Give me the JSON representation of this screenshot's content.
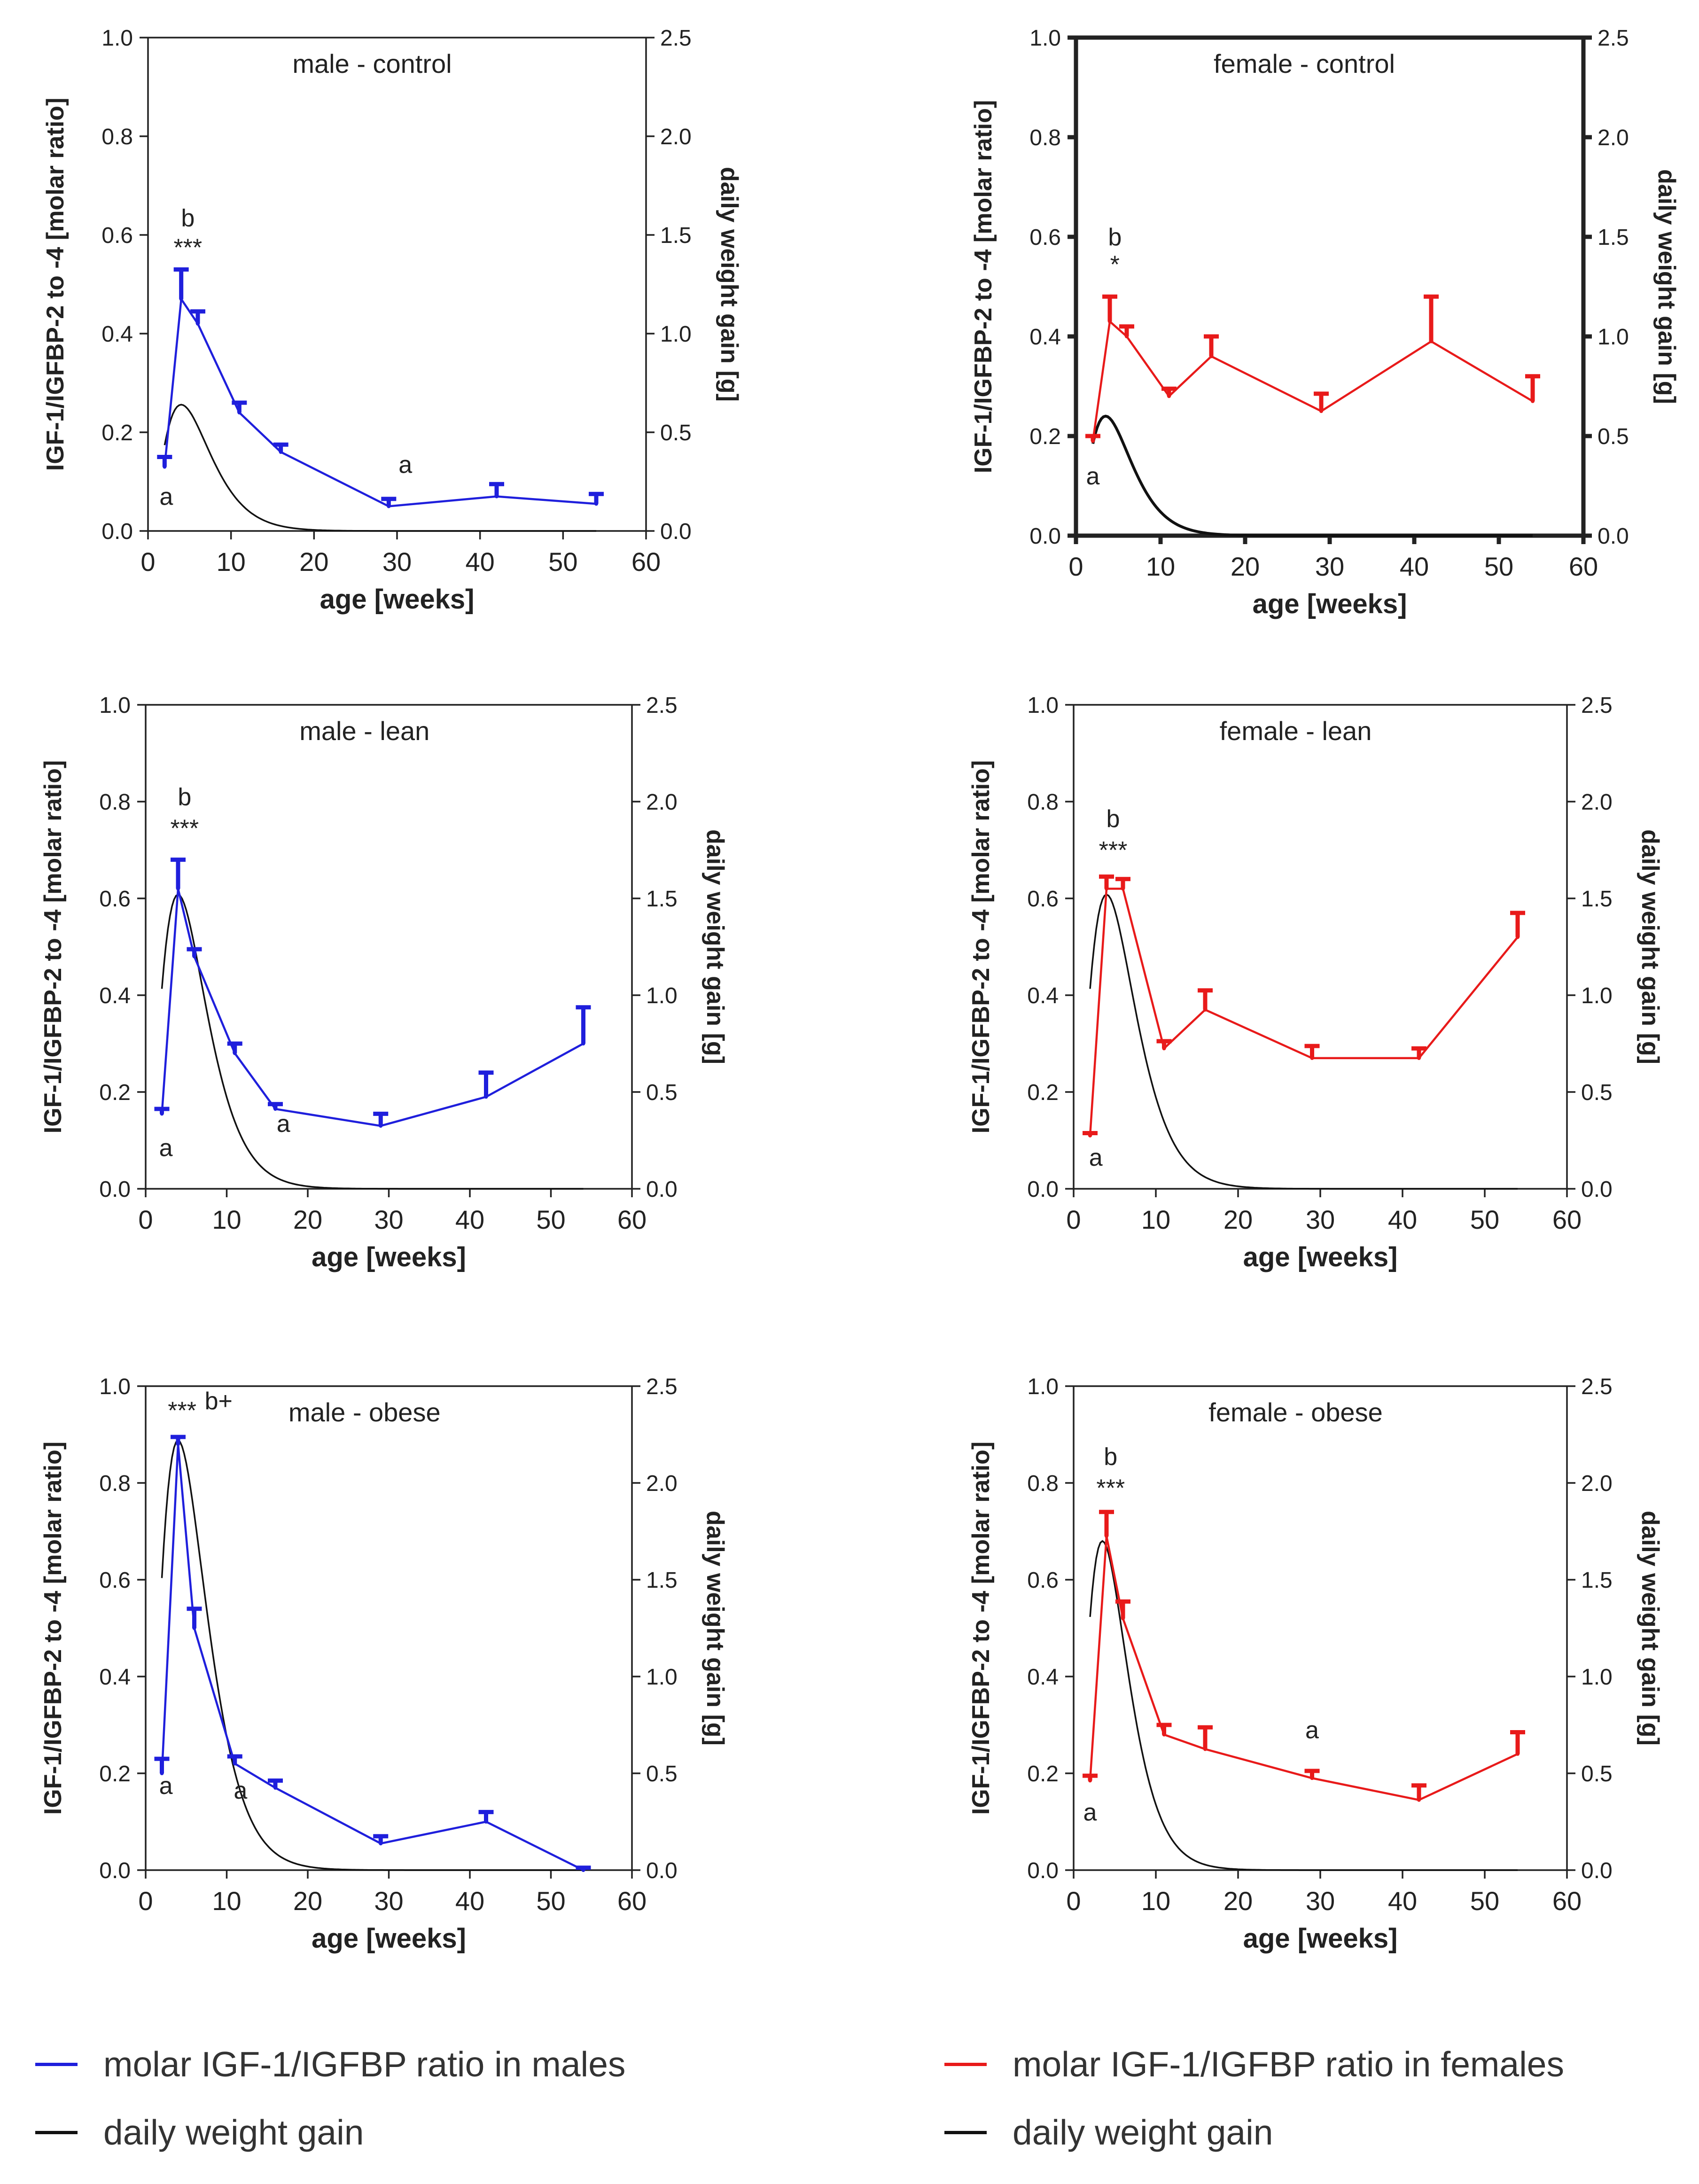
{
  "colors": {
    "male": "#1f1fdc",
    "female": "#e81a1a",
    "weight": "#111111"
  },
  "chart_data": [
    {
      "type": "line",
      "title": "male - control",
      "color": "#1f1fdc",
      "xlabel": "age [weeks]",
      "ylabel": "IGF-1/IGFBP-2 to -4 [molar ratio]",
      "y2label": "daily weight gain [g]",
      "xlim": [
        0,
        60
      ],
      "ylim": [
        0,
        1.0
      ],
      "y2lim": [
        0,
        2.5
      ],
      "xticks": [
        "0",
        "10",
        "20",
        "30",
        "40",
        "50",
        "60"
      ],
      "yticks": [
        "0.0",
        "0.2",
        "0.4",
        "0.6",
        "0.8",
        "1.0"
      ],
      "y2ticks": [
        "0.0",
        "0.5",
        "1.0",
        "1.5",
        "2.0",
        "2.5"
      ],
      "series": [
        {
          "name": "molar IGF-1/IGFBP ratio in males",
          "x": [
            2,
            4,
            6,
            11,
            16,
            29,
            42,
            54
          ],
          "y": [
            0.13,
            0.47,
            0.42,
            0.24,
            0.16,
            0.05,
            0.07,
            0.055
          ],
          "err": [
            0.02,
            0.06,
            0.025,
            0.02,
            0.015,
            0.015,
            0.025,
            0.02
          ]
        },
        {
          "name": "daily weight gain",
          "axis": "right",
          "curve": {
            "peak": 0.64,
            "t_peak": 4,
            "x_start": 2,
            "x_end": 54
          }
        }
      ],
      "annotations": [
        {
          "text": "a",
          "x": 2.2,
          "y": 0.07
        },
        {
          "text": "b",
          "x": 4.8,
          "y": 0.635
        },
        {
          "text": "***",
          "x": 4.8,
          "y": 0.575
        },
        {
          "text": "a",
          "x": 31,
          "y": 0.135
        }
      ]
    },
    {
      "type": "line",
      "title": "female - control",
      "color": "#e81a1a",
      "xlabel": "age [weeks]",
      "ylabel": "IGF-1/IGFBP-2 to -4 [molar ratio]",
      "y2label": "daily weight gain [g]",
      "xlim": [
        0,
        60
      ],
      "ylim": [
        0,
        1.0
      ],
      "y2lim": [
        0,
        2.5
      ],
      "xticks": [
        "0",
        "10",
        "20",
        "30",
        "40",
        "50",
        "60"
      ],
      "yticks": [
        "0.0",
        "0.2",
        "0.4",
        "0.6",
        "0.8",
        "1.0"
      ],
      "y2ticks": [
        "0.0",
        "0.5",
        "1.0",
        "1.5",
        "2.0",
        "2.5"
      ],
      "series": [
        {
          "name": "molar IGF-1/IGFBP ratio in females",
          "x": [
            2,
            4,
            6,
            11,
            16,
            29,
            42,
            54
          ],
          "y": [
            0.19,
            0.43,
            0.4,
            0.28,
            0.36,
            0.25,
            0.39,
            0.27
          ],
          "err": [
            0.01,
            0.05,
            0.02,
            0.015,
            0.04,
            0.035,
            0.09,
            0.05
          ]
        },
        {
          "name": "daily weight gain",
          "axis": "right",
          "curve": {
            "peak": 0.6,
            "t_peak": 3.5,
            "x_start": 2,
            "x_end": 54
          }
        }
      ],
      "annotations": [
        {
          "text": "a",
          "x": 2,
          "y": 0.12
        },
        {
          "text": "b",
          "x": 4.6,
          "y": 0.6
        },
        {
          "text": "*",
          "x": 4.6,
          "y": 0.545
        }
      ]
    },
    {
      "type": "line",
      "title": "male - lean",
      "color": "#1f1fdc",
      "xlabel": "age [weeks]",
      "ylabel": "IGF-1/IGFBP-2 to -4 [molar ratio]",
      "y2label": "daily weight gain [g]",
      "xlim": [
        0,
        60
      ],
      "ylim": [
        0,
        1.0
      ],
      "y2lim": [
        0,
        2.5
      ],
      "xticks": [
        "0",
        "10",
        "20",
        "30",
        "40",
        "50",
        "60"
      ],
      "yticks": [
        "0.0",
        "0.2",
        "0.4",
        "0.6",
        "0.8",
        "1.0"
      ],
      "y2ticks": [
        "0.0",
        "0.5",
        "1.0",
        "1.5",
        "2.0",
        "2.5"
      ],
      "series": [
        {
          "name": "molar IGF-1/IGFBP ratio in males",
          "x": [
            2,
            4,
            6,
            11,
            16,
            29,
            42,
            54
          ],
          "y": [
            0.155,
            0.62,
            0.48,
            0.28,
            0.165,
            0.13,
            0.19,
            0.3
          ],
          "err": [
            0.01,
            0.06,
            0.015,
            0.02,
            0.01,
            0.025,
            0.05,
            0.075
          ]
        },
        {
          "name": "daily weight gain",
          "axis": "right",
          "curve": {
            "peak": 1.52,
            "t_peak": 4,
            "x_start": 2,
            "x_end": 54
          }
        }
      ],
      "annotations": [
        {
          "text": "a",
          "x": 2.5,
          "y": 0.085
        },
        {
          "text": "b",
          "x": 4.8,
          "y": 0.81
        },
        {
          "text": "***",
          "x": 4.8,
          "y": 0.745
        },
        {
          "text": "a",
          "x": 17,
          "y": 0.135
        }
      ]
    },
    {
      "type": "line",
      "title": "female - lean",
      "color": "#e81a1a",
      "xlabel": "age [weeks]",
      "ylabel": "IGF-1/IGFBP-2 to -4 [molar ratio]",
      "y2label": "daily weight gain [g]",
      "xlim": [
        0,
        60
      ],
      "ylim": [
        0,
        1.0
      ],
      "y2lim": [
        0,
        2.5
      ],
      "xticks": [
        "0",
        "10",
        "20",
        "30",
        "40",
        "50",
        "60"
      ],
      "yticks": [
        "0.0",
        "0.2",
        "0.4",
        "0.6",
        "0.8",
        "1.0"
      ],
      "y2ticks": [
        "0.0",
        "0.5",
        "1.0",
        "1.5",
        "2.0",
        "2.5"
      ],
      "series": [
        {
          "name": "molar IGF-1/IGFBP ratio in females",
          "x": [
            2,
            4,
            6,
            11,
            16,
            29,
            42,
            54
          ],
          "y": [
            0.11,
            0.62,
            0.62,
            0.29,
            0.37,
            0.27,
            0.27,
            0.52
          ],
          "err": [
            0.005,
            0.025,
            0.02,
            0.015,
            0.04,
            0.025,
            0.02,
            0.05
          ]
        },
        {
          "name": "daily weight gain",
          "axis": "right",
          "curve": {
            "peak": 1.52,
            "t_peak": 4,
            "x_start": 2,
            "x_end": 54
          }
        }
      ],
      "annotations": [
        {
          "text": "a",
          "x": 2.7,
          "y": 0.065
        },
        {
          "text": "b",
          "x": 4.8,
          "y": 0.765
        },
        {
          "text": "***",
          "x": 4.8,
          "y": 0.7
        }
      ]
    },
    {
      "type": "line",
      "title": "male - obese",
      "color": "#1f1fdc",
      "xlabel": "age [weeks]",
      "ylabel": "IGF-1/IGFBP-2 to -4 [molar ratio]",
      "y2label": "daily weight gain [g]",
      "xlim": [
        0,
        60
      ],
      "ylim": [
        0,
        1.0
      ],
      "y2lim": [
        0,
        2.5
      ],
      "xticks": [
        "0",
        "10",
        "20",
        "30",
        "40",
        "50",
        "60"
      ],
      "yticks": [
        "0.0",
        "0.2",
        "0.4",
        "0.6",
        "0.8",
        "1.0"
      ],
      "y2ticks": [
        "0.0",
        "0.5",
        "1.0",
        "1.5",
        "2.0",
        "2.5"
      ],
      "series": [
        {
          "name": "molar IGF-1/IGFBP ratio in males",
          "x": [
            2,
            4,
            6,
            11,
            16,
            29,
            42,
            54
          ],
          "y": [
            0.2,
            0.88,
            0.5,
            0.22,
            0.17,
            0.055,
            0.1,
            0.0
          ],
          "err": [
            0.03,
            0.015,
            0.04,
            0.015,
            0.015,
            0.015,
            0.02,
            0.005
          ]
        },
        {
          "name": "daily weight gain",
          "axis": "right",
          "curve": {
            "peak": 2.22,
            "t_peak": 4,
            "x_start": 2,
            "x_end": 54
          }
        }
      ],
      "annotations": [
        {
          "text": "a",
          "x": 2.5,
          "y": 0.175
        },
        {
          "text": "***",
          "x": 4.5,
          "y": 0.95
        },
        {
          "text": "b+",
          "x": 9,
          "y": 0.97
        },
        {
          "text": "a",
          "x": 11.7,
          "y": 0.165
        }
      ]
    },
    {
      "type": "line",
      "title": "female - obese",
      "color": "#e81a1a",
      "xlabel": "age [weeks]",
      "ylabel": "IGF-1/IGFBP-2 to -4 [molar ratio]",
      "y2label": "daily weight gain [g]",
      "xlim": [
        0,
        60
      ],
      "ylim": [
        0,
        1.0
      ],
      "y2lim": [
        0,
        2.5
      ],
      "xticks": [
        "0",
        "10",
        "20",
        "30",
        "40",
        "50",
        "60"
      ],
      "yticks": [
        "0.0",
        "0.2",
        "0.4",
        "0.6",
        "0.8",
        "1.0"
      ],
      "y2ticks": [
        "0.0",
        "0.5",
        "1.0",
        "1.5",
        "2.0",
        "2.5"
      ],
      "series": [
        {
          "name": "molar IGF-1/IGFBP ratio in females",
          "x": [
            2,
            4,
            6,
            11,
            16,
            29,
            42,
            54
          ],
          "y": [
            0.185,
            0.69,
            0.52,
            0.28,
            0.25,
            0.19,
            0.145,
            0.24
          ],
          "err": [
            0.01,
            0.05,
            0.035,
            0.02,
            0.045,
            0.015,
            0.03,
            0.045
          ]
        },
        {
          "name": "daily weight gain",
          "axis": "right",
          "curve": {
            "peak": 1.7,
            "t_peak": 3.5,
            "x_start": 2,
            "x_end": 54
          }
        }
      ],
      "annotations": [
        {
          "text": "a",
          "x": 2,
          "y": 0.12
        },
        {
          "text": "b",
          "x": 4.5,
          "y": 0.855
        },
        {
          "text": "***",
          "x": 4.5,
          "y": 0.79
        },
        {
          "text": "a",
          "x": 29,
          "y": 0.29
        }
      ]
    }
  ],
  "legend": {
    "male_ratio": "molar IGF-1/IGFBP ratio in males",
    "male_weight": "daily weight gain",
    "female_ratio": "molar IGF-1/IGFBP ratio in females",
    "female_weight": "daily weight gain"
  }
}
